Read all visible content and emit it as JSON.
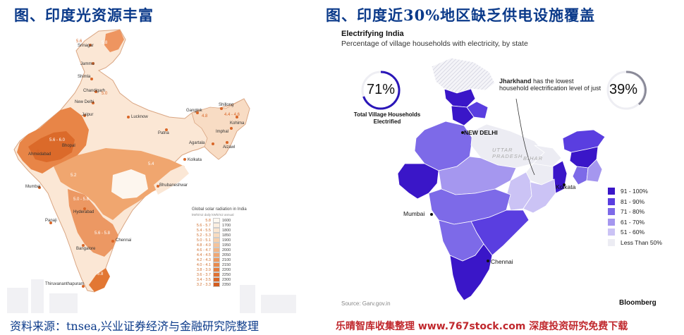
{
  "titles": {
    "left": "图、印度光资源丰富",
    "right": "图、印度近30%地区缺乏供电设施覆盖"
  },
  "solar_map": {
    "cities": [
      "Srinagar",
      "Jammu",
      "Shimla",
      "Chandigarh",
      "New Delhi",
      "Jaipur",
      "Lucknow",
      "Patna",
      "Gangtok",
      "Shillong",
      "Kohima",
      "Imphal",
      "Aizawl",
      "Agartala",
      "Bhopal",
      "Ahmedabad",
      "Kolkata",
      "Bhubaneshwar",
      "Mumbai",
      "Hyderabad",
      "Panaji",
      "Bangalore",
      "Chennai",
      "Thiruvananthapuram"
    ],
    "legend": {
      "title": "Global solar radiation in India",
      "units": "kWh/m2 daily   kWh/m2 annual",
      "daily": [
        "5.8",
        "5.6 - 5.7",
        "5.4 - 5.5",
        "5.2 - 5.3",
        "5.0 - 5.1",
        "4.8 - 4.9",
        "4.6 - 4.7",
        "4.4 - 4.5",
        "4.2 - 4.3",
        "4.0 - 4.1",
        "3.8 - 3.9",
        "3.6 - 3.7",
        "3.4 - 3.5",
        "3.2 - 3.3"
      ],
      "annual": [
        "1600",
        "1700",
        "1800",
        "1850",
        "1900",
        "1950",
        "2000",
        "2050",
        "2100",
        "2150",
        "2200",
        "2250",
        "2300",
        "2350"
      ],
      "colors": [
        "#fdf8f0",
        "#fcefe0",
        "#fbe6d0",
        "#f9dcc0",
        "#f7d0ac",
        "#f5c39a",
        "#f2b586",
        "#efa672",
        "#ec985f",
        "#e88a4d",
        "#e47d3e",
        "#df7132",
        "#d96627",
        "#d25c1e"
      ]
    },
    "region_values": [
      "5.8",
      "5.6",
      "5.2 - 5.4",
      "5.6 - 6.0",
      "5.4",
      "5.2",
      "5.0",
      "4.8",
      "4.4 - 4.6",
      "5.0 - 5.8",
      "5.6 - 5.8",
      "5.8"
    ]
  },
  "electrify_map": {
    "title": "Electrifying India",
    "subtitle": "Percentage of village households with electricity, by state",
    "total_pct": "71%",
    "total_label": "Total Village Households Electrified",
    "jharkhand_state": "Jharkhand",
    "jharkhand_text_1": " has the lowest",
    "jharkhand_text_2": "household electrification level of just",
    "jharkhand_pct": "39%",
    "cities": {
      "new_delhi": "NEW DELHI",
      "kolkata": "Kolkata",
      "mumbai": "Mumbai",
      "chennai": "Chennai"
    },
    "states": {
      "uttar_pradesh": "UTTAR PRADESH",
      "bihar": "BIHAR"
    },
    "legend": [
      {
        "label": "91 - 100%",
        "color": "#3a16c8"
      },
      {
        "label": "81 - 90%",
        "color": "#5a3ee0"
      },
      {
        "label": "71 - 80%",
        "color": "#7d6ae8"
      },
      {
        "label": "61 - 70%",
        "color": "#a597ef"
      },
      {
        "label": "51 - 60%",
        "color": "#cbc3f5"
      },
      {
        "label": "Less Than 50%",
        "color": "#ececf3"
      }
    ],
    "source": "Source: Garv.gov.in",
    "brand": "Bloomberg"
  },
  "footer": {
    "source": "资料来源：tnsea,兴业证券经济与金融研究院整理",
    "watermark": "乐晴智库收集整理 www.767stock.com 深度投资研究免费下载"
  }
}
